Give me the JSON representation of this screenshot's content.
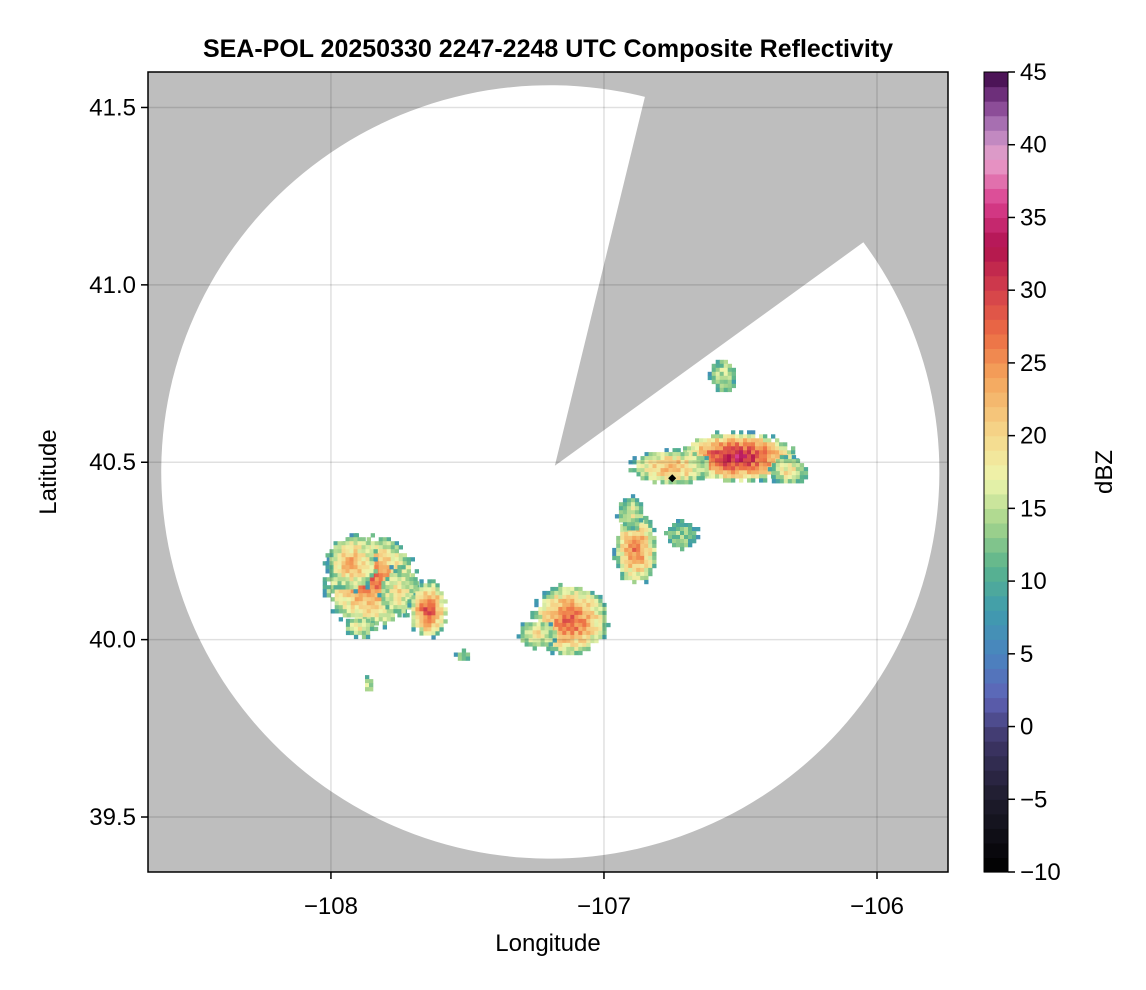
{
  "chart_data": {
    "type": "heatmap",
    "title": "SEA-POL 20250330 2247-2248 UTC Composite Reflectivity",
    "xlabel": "Longitude",
    "ylabel": "Latitude",
    "xlim": [
      -108.67,
      -105.74
    ],
    "ylim": [
      39.345,
      41.6
    ],
    "x_ticks": [
      {
        "value": -108,
        "label": "−108"
      },
      {
        "value": -107,
        "label": "−107"
      },
      {
        "value": -106,
        "label": "−106"
      }
    ],
    "y_ticks": [
      {
        "value": 39.5,
        "label": "39.5"
      },
      {
        "value": 40.0,
        "label": "40.0"
      },
      {
        "value": 40.5,
        "label": "40.5"
      },
      {
        "value": 41.0,
        "label": "41.0"
      },
      {
        "value": 41.5,
        "label": "41.5"
      }
    ],
    "grid": true,
    "background_color": "#bebebe",
    "coverage_color": "#ffffff",
    "radar": {
      "center": {
        "lon": -107.18,
        "lat": 40.49
      },
      "range_edge": {
        "lon_min": -108.62,
        "lon_max": -105.77,
        "lat_min": 39.37,
        "lat_max": 41.55
      },
      "blocked_sector": {
        "edge_start": {
          "lon": -106.85,
          "lat": 41.53
        },
        "edge_end": {
          "lon": -106.05,
          "lat": 41.12
        }
      }
    },
    "marker": {
      "lon": -106.75,
      "lat": 40.455,
      "shape": "diamond",
      "color": "#000000"
    },
    "colorbar": {
      "label": "dBZ",
      "vmin": -10,
      "vmax": 45,
      "ticks": [
        -10,
        -5,
        0,
        5,
        10,
        15,
        20,
        25,
        30,
        35,
        40,
        45
      ],
      "tick_labels": [
        "−10",
        "−5",
        "0",
        "5",
        "10",
        "15",
        "20",
        "25",
        "30",
        "35",
        "40",
        "45"
      ],
      "levels": 55,
      "color_stops": [
        {
          "value": -10,
          "color": "#000000"
        },
        {
          "value": -5,
          "color": "#1e1c2c"
        },
        {
          "value": -1,
          "color": "#3d3566"
        },
        {
          "value": 2,
          "color": "#5e63b6"
        },
        {
          "value": 5,
          "color": "#4a84bf"
        },
        {
          "value": 8,
          "color": "#3f9cad"
        },
        {
          "value": 11,
          "color": "#5ab48c"
        },
        {
          "value": 14,
          "color": "#a5d48c"
        },
        {
          "value": 17,
          "color": "#eef5ac"
        },
        {
          "value": 20,
          "color": "#f5d88c"
        },
        {
          "value": 24,
          "color": "#f4a55c"
        },
        {
          "value": 27,
          "color": "#ec6d44"
        },
        {
          "value": 30,
          "color": "#d33f4b"
        },
        {
          "value": 33,
          "color": "#b0124e"
        },
        {
          "value": 36,
          "color": "#d93e8d"
        },
        {
          "value": 39,
          "color": "#e9a2cc"
        },
        {
          "value": 41,
          "color": "#b580bd"
        },
        {
          "value": 43,
          "color": "#7e3c8c"
        },
        {
          "value": 45,
          "color": "#3b0645"
        }
      ]
    },
    "echo_cells": [
      {
        "lon": -107.86,
        "lat": 40.17,
        "rlon": 0.17,
        "rlat": 0.13,
        "peak_dbz": 28
      },
      {
        "lon": -107.93,
        "lat": 40.22,
        "rlon": 0.09,
        "rlat": 0.08,
        "peak_dbz": 24
      },
      {
        "lon": -107.76,
        "lat": 40.14,
        "rlon": 0.07,
        "rlat": 0.07,
        "peak_dbz": 20
      },
      {
        "lon": -107.65,
        "lat": 40.09,
        "rlon": 0.07,
        "rlat": 0.08,
        "peak_dbz": 30
      },
      {
        "lon": -107.13,
        "lat": 40.06,
        "rlon": 0.14,
        "rlat": 0.1,
        "peak_dbz": 29
      },
      {
        "lon": -107.25,
        "lat": 40.02,
        "rlon": 0.07,
        "rlat": 0.04,
        "peak_dbz": 20
      },
      {
        "lon": -106.89,
        "lat": 40.26,
        "rlon": 0.08,
        "rlat": 0.1,
        "peak_dbz": 27
      },
      {
        "lon": -106.91,
        "lat": 40.36,
        "rlon": 0.05,
        "rlat": 0.05,
        "peak_dbz": 18
      },
      {
        "lon": -106.52,
        "lat": 40.52,
        "rlon": 0.22,
        "rlat": 0.07,
        "peak_dbz": 34
      },
      {
        "lon": -106.76,
        "lat": 40.49,
        "rlon": 0.15,
        "rlat": 0.05,
        "peak_dbz": 24
      },
      {
        "lon": -106.33,
        "lat": 40.48,
        "rlon": 0.07,
        "rlat": 0.04,
        "peak_dbz": 20
      },
      {
        "lon": -106.57,
        "lat": 40.75,
        "rlon": 0.05,
        "rlat": 0.05,
        "peak_dbz": 16
      },
      {
        "lon": -106.72,
        "lat": 40.3,
        "rlon": 0.06,
        "rlat": 0.04,
        "peak_dbz": 14
      },
      {
        "lon": -107.87,
        "lat": 39.88,
        "rlon": 0.02,
        "rlat": 0.02,
        "peak_dbz": 18
      },
      {
        "lon": -107.52,
        "lat": 39.96,
        "rlon": 0.03,
        "rlat": 0.015,
        "peak_dbz": 13
      },
      {
        "lon": -107.9,
        "lat": 40.04,
        "rlon": 0.06,
        "rlat": 0.03,
        "peak_dbz": 18
      }
    ]
  }
}
